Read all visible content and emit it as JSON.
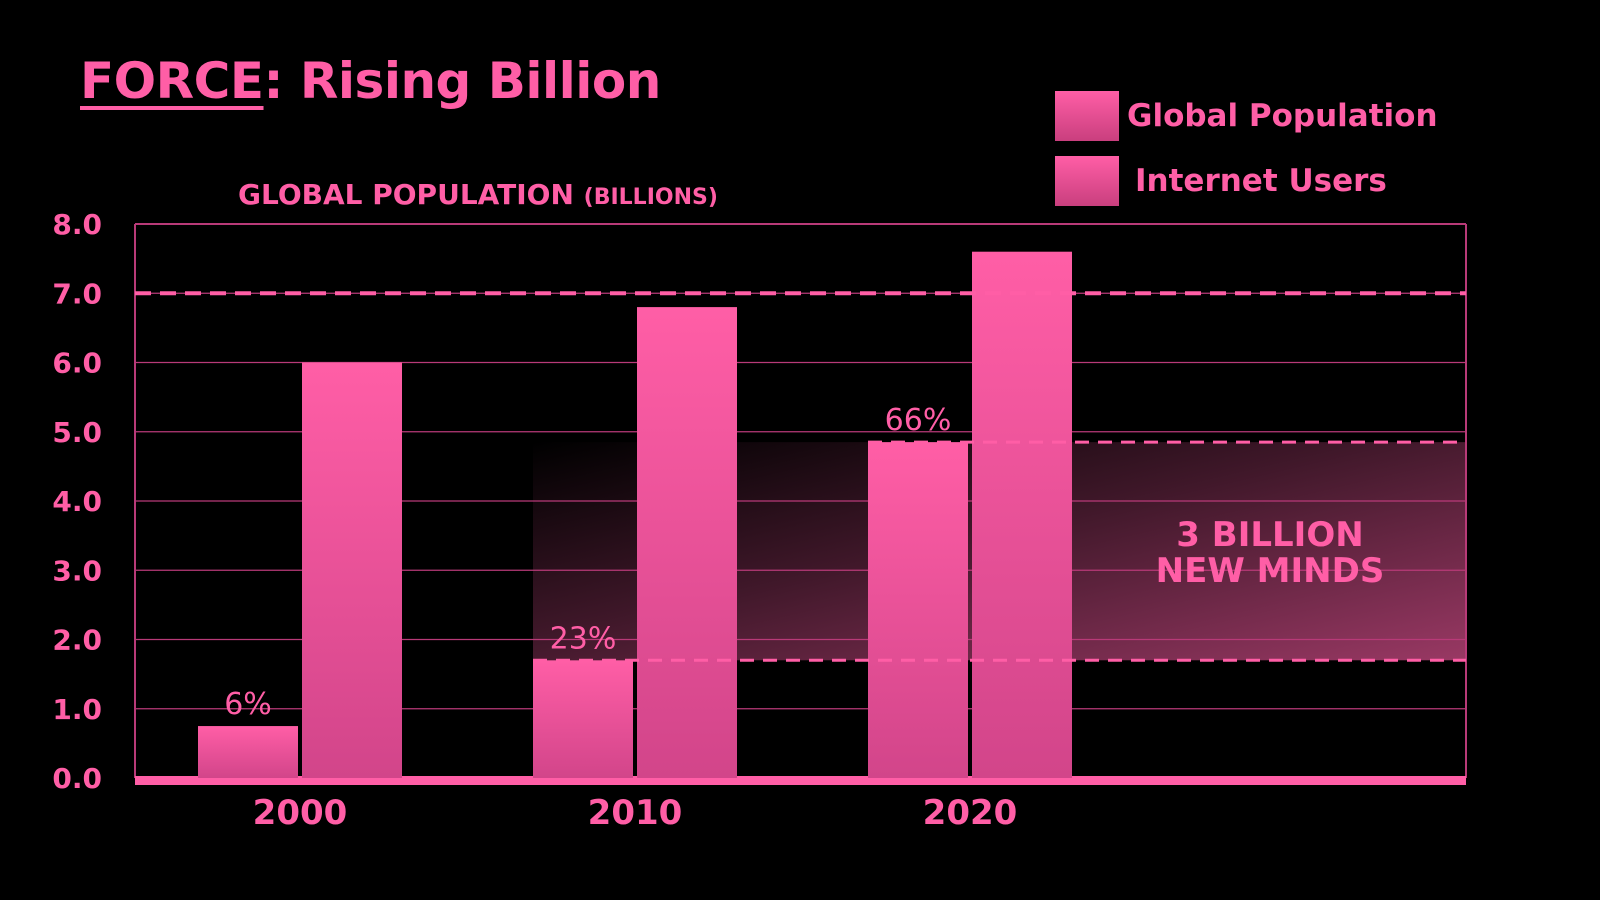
{
  "title_main": "FORCE",
  "title_rest": ": Rising Billion",
  "chart_data": {
    "type": "bar",
    "subtitle_main": "GLOBAL POPULATION",
    "subtitle_unit": "(BILLIONS)",
    "categories": [
      "2000",
      "2010",
      "2020"
    ],
    "series": [
      {
        "name": "Internet Users",
        "values": [
          0.75,
          1.7,
          4.85
        ],
        "labels": [
          "6%",
          "23%",
          "66%"
        ]
      },
      {
        "name": "Global Population",
        "values": [
          6.0,
          6.8,
          7.6
        ]
      }
    ],
    "legend": [
      "Global Population",
      "Internet Users"
    ],
    "legend_position": "top-right",
    "yticks": [
      "0.0",
      "1.0",
      "2.0",
      "3.0",
      "4.0",
      "5.0",
      "6.0",
      "7.0",
      "8.0"
    ],
    "ylim": [
      0,
      8
    ],
    "grid": true,
    "reference_lines": [
      7.0,
      4.85,
      1.7
    ],
    "annotation": {
      "line1": "3 BILLION",
      "line2": "NEW MINDS"
    },
    "colors": {
      "bar": "#ff5ea6",
      "bar_dark": "#c93f7e",
      "grid": "#b83a78",
      "background": "#000000"
    }
  }
}
